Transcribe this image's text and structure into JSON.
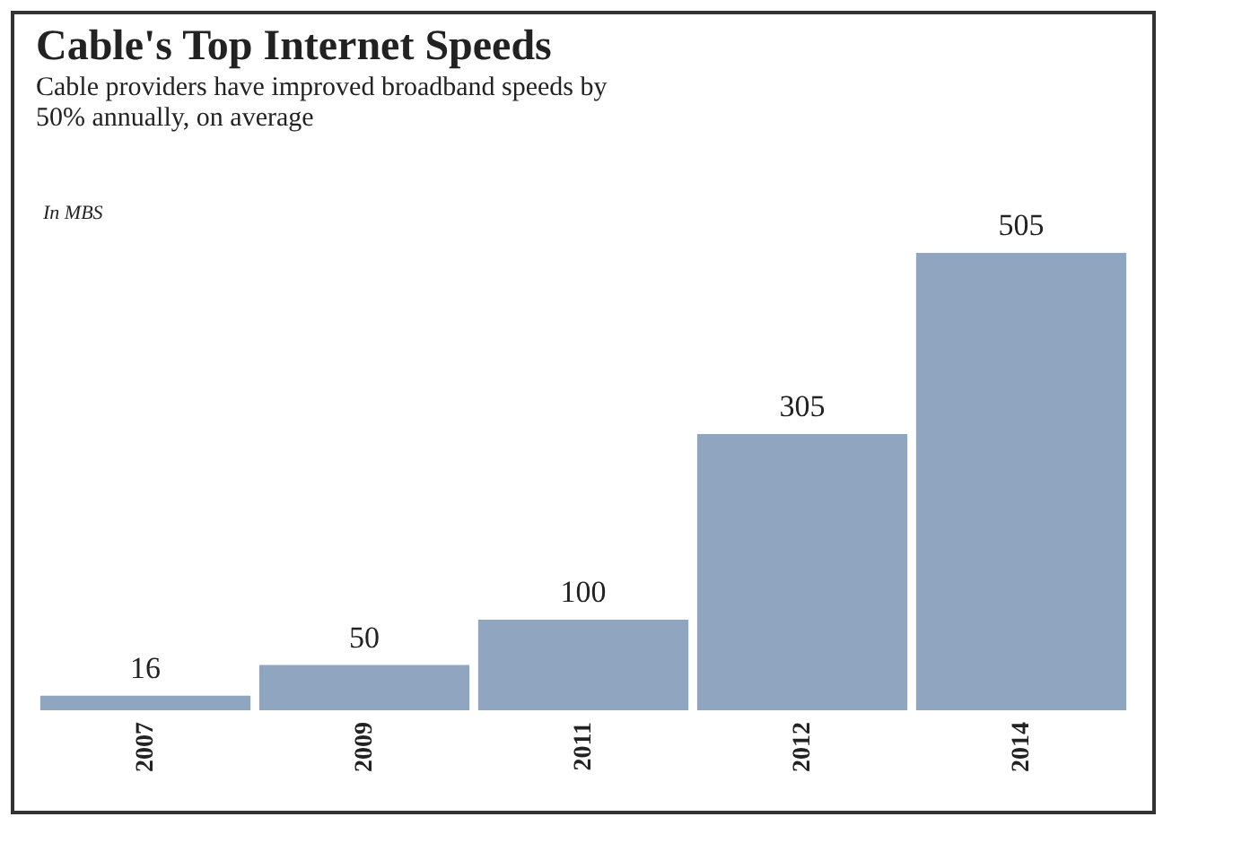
{
  "chart_data": {
    "type": "bar",
    "title": "Cable's Top Internet Speeds",
    "subtitle": "Cable providers have improved broadband speeds by 50% annually, on average",
    "annotations": [
      "In MBS"
    ],
    "categories": [
      "2007",
      "2009",
      "2011",
      "2012",
      "2014"
    ],
    "values": [
      16,
      50,
      100,
      305,
      505
    ],
    "color": "#8fa5c0",
    "data_labels": true
  }
}
